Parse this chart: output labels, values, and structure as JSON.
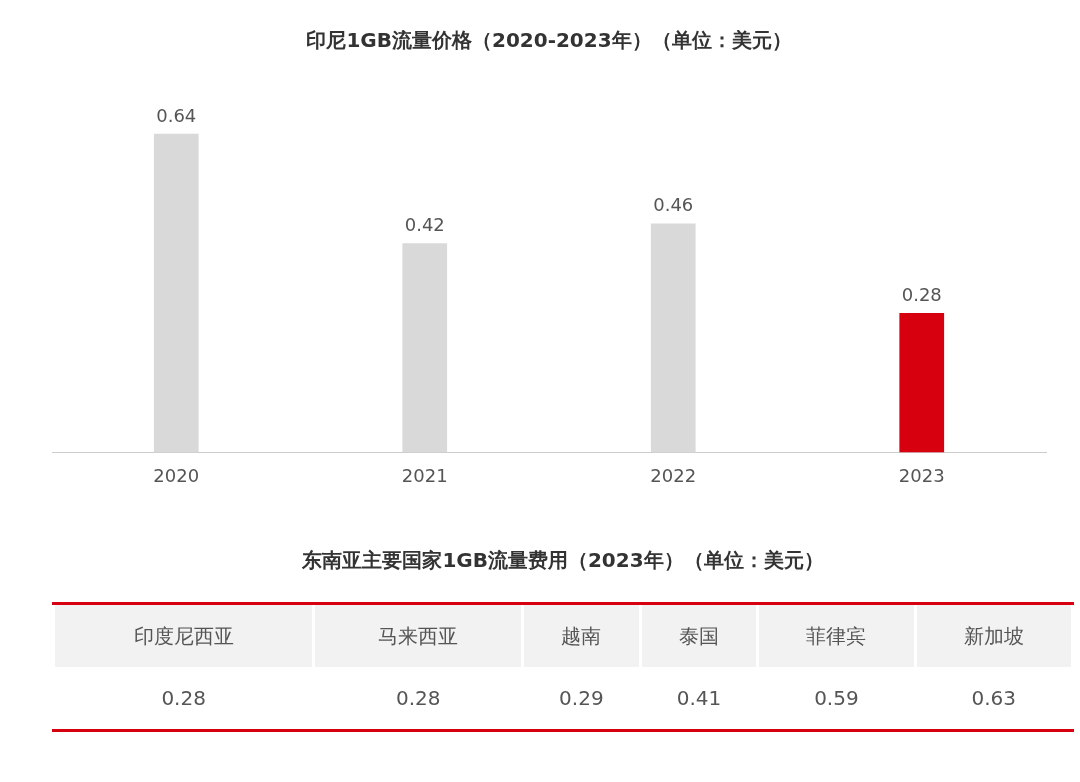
{
  "chart_data": [
    {
      "type": "bar",
      "title": "印尼1GB流量价格（2020-2023年）（单位：美元）",
      "categories": [
        "2020",
        "2021",
        "2022",
        "2023"
      ],
      "values": [
        0.64,
        0.42,
        0.46,
        0.28
      ],
      "colors": [
        "#d9d9d9",
        "#d9d9d9",
        "#d9d9d9",
        "#d7000f"
      ],
      "data_labels": true,
      "grid": false,
      "legend": false
    },
    {
      "type": "other",
      "title": "东南亚主要国家1GB流量费用（2023年）（单位：美元）",
      "categories": [
        "印度尼西亚",
        "马来西亚",
        "越南",
        "泰国",
        "菲律宾",
        "新加坡"
      ],
      "values": [
        0.28,
        0.28,
        0.29,
        0.41,
        0.59,
        0.63
      ],
      "data_labels": true
    }
  ]
}
